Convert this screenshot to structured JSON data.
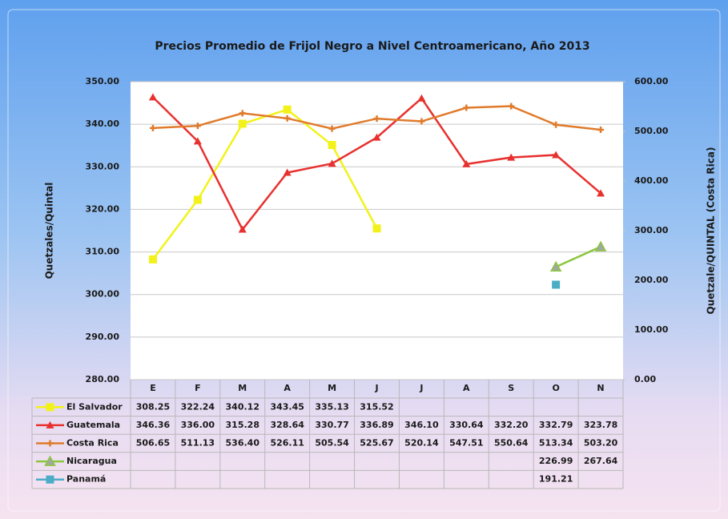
{
  "chart_data": {
    "type": "line",
    "title": "Precios Promedio de Frijol Negro a Nivel Centroamericano, Año 2013",
    "ylabel": "Quetzales/Quintal",
    "y2label": "Quetzale/QUINTAL (Costa Rica)",
    "categories": [
      "E",
      "F",
      "M",
      "A",
      "M",
      "J",
      "J",
      "A",
      "S",
      "O",
      "N"
    ],
    "ylim": [
      280,
      350
    ],
    "yticks": [
      {
        "value": 280,
        "label": "280.00"
      },
      {
        "value": 290,
        "label": "290.00"
      },
      {
        "value": 300,
        "label": "300.00"
      },
      {
        "value": 310,
        "label": "310.00"
      },
      {
        "value": 320,
        "label": "320.00"
      },
      {
        "value": 330,
        "label": "330.00"
      },
      {
        "value": 340,
        "label": "340.00"
      },
      {
        "value": 350,
        "label": "350.00"
      }
    ],
    "y2lim": [
      0,
      600
    ],
    "y2ticks": [
      {
        "value": 0,
        "label": "0.00"
      },
      {
        "value": 100,
        "label": "100.00"
      },
      {
        "value": 200,
        "label": "200.00"
      },
      {
        "value": 300,
        "label": "300.00"
      },
      {
        "value": 400,
        "label": "400.00"
      },
      {
        "value": 500,
        "label": "500.00"
      },
      {
        "value": 600,
        "label": "600.00"
      }
    ],
    "grid": true,
    "series": [
      {
        "name": "El Salvador",
        "color": "#f2f21a",
        "marker": "square",
        "axis": "y",
        "values": [
          308.25,
          322.24,
          340.12,
          343.45,
          335.13,
          315.52,
          null,
          null,
          null,
          null,
          null
        ],
        "value_labels": [
          "308.25",
          "322.24",
          "340.12",
          "343.45",
          "335.13",
          "315.52",
          null,
          null,
          null,
          null,
          null
        ]
      },
      {
        "name": "Guatemala",
        "color": "#e8312f",
        "marker": "triangle",
        "axis": "y",
        "values": [
          346.36,
          336,
          315.28,
          328.64,
          330.77,
          336.89,
          346.1,
          330.64,
          332.2,
          332.79,
          323.78
        ],
        "value_labels": [
          "346.36",
          "336.00",
          "315.28",
          "328.64",
          "330.77",
          "336.89",
          "346.10",
          "330.64",
          "332.20",
          "332.79",
          "323.78"
        ]
      },
      {
        "name": "Costa Rica",
        "color": "#e07b2c",
        "marker": "plus",
        "axis": "y2",
        "values": [
          506.65,
          511.13,
          536.4,
          526.11,
          505.54,
          525.67,
          520.14,
          547.51,
          550.64,
          513.34,
          503.2
        ],
        "value_labels": [
          "506.65",
          "511.13",
          "536.40",
          "526.11",
          "505.54",
          "525.67",
          "520.14",
          "547.51",
          "550.64",
          "513.34",
          "503.20"
        ]
      },
      {
        "name": "Nicaragua",
        "color": "#8cc63f",
        "marker": "triangle-grey",
        "axis": "y2",
        "values": [
          null,
          null,
          null,
          null,
          null,
          null,
          null,
          null,
          null,
          226.99,
          267.64
        ],
        "value_labels": [
          null,
          null,
          null,
          null,
          null,
          null,
          null,
          null,
          null,
          "226.99",
          "267.64"
        ]
      },
      {
        "name": "Panamá",
        "color": "#4bacc6",
        "marker": "square",
        "axis": "y2",
        "values": [
          null,
          null,
          null,
          null,
          null,
          null,
          null,
          null,
          null,
          191.21,
          null
        ],
        "value_labels": [
          null,
          null,
          null,
          null,
          null,
          null,
          null,
          null,
          null,
          "191.21",
          null
        ]
      }
    ]
  }
}
